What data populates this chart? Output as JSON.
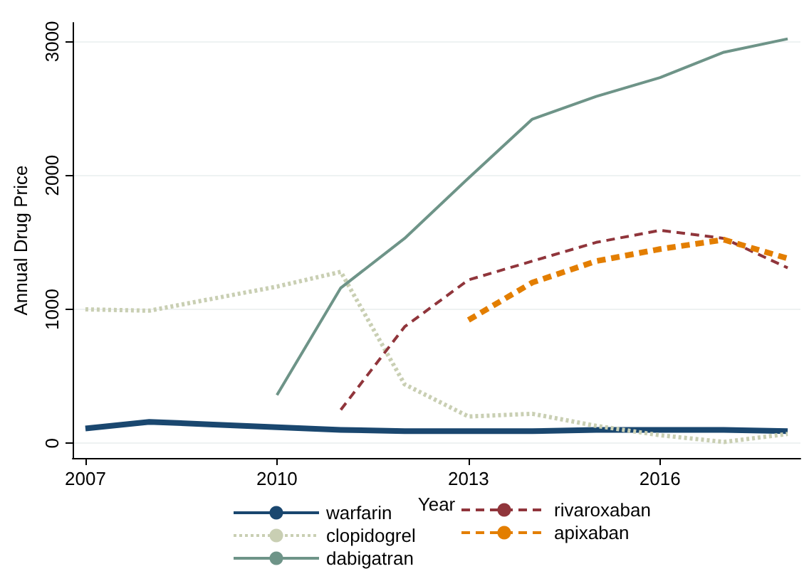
{
  "chart_data": {
    "type": "line",
    "xlabel": "Year",
    "ylabel": "Annual Drug Price",
    "xlim": [
      2006.8,
      2018.2
    ],
    "xticks": [
      2007,
      2010,
      2013,
      2016
    ],
    "ylim": [
      -110,
      3140
    ],
    "yticks": [
      0,
      1000,
      2000,
      3000
    ],
    "grid": "y",
    "legend": "bottom",
    "marker": "none",
    "series": [
      {
        "name": "warfarin",
        "color": "#1a476f",
        "line_style": "solid",
        "x": [
          2007,
          2008,
          2009,
          2010,
          2011,
          2012,
          2013,
          2014,
          2015,
          2016,
          2017,
          2018
        ],
        "values": [
          110,
          160,
          140,
          120,
          100,
          90,
          90,
          90,
          100,
          100,
          100,
          90
        ]
      },
      {
        "name": "clopidogrel",
        "color": "#c9cfb3",
        "line_style": "dotted",
        "x": [
          2007,
          2008,
          2009,
          2010,
          2011,
          2012,
          2013,
          2014,
          2015,
          2016,
          2017,
          2018
        ],
        "values": [
          1000,
          990,
          1080,
          1170,
          1280,
          440,
          200,
          220,
          130,
          60,
          10,
          70
        ]
      },
      {
        "name": "dabigatran",
        "color": "#6e9488",
        "line_style": "solid",
        "x": [
          2010,
          2011,
          2012,
          2013,
          2014,
          2015,
          2016,
          2017,
          2018
        ],
        "values": [
          360,
          1160,
          1530,
          1980,
          2420,
          2590,
          2730,
          2920,
          3020
        ]
      },
      {
        "name": "rivaroxaban",
        "color": "#90353b",
        "line_style": "dashed",
        "x": [
          2011,
          2012,
          2013,
          2014,
          2015,
          2016,
          2017,
          2018
        ],
        "values": [
          250,
          870,
          1220,
          1360,
          1500,
          1590,
          1530,
          1310
        ]
      },
      {
        "name": "apixaban",
        "color": "#e37e00",
        "line_style": "dashed",
        "x": [
          2013,
          2014,
          2015,
          2016,
          2017,
          2018
        ],
        "values": [
          920,
          1200,
          1360,
          1450,
          1520,
          1380
        ]
      }
    ]
  }
}
